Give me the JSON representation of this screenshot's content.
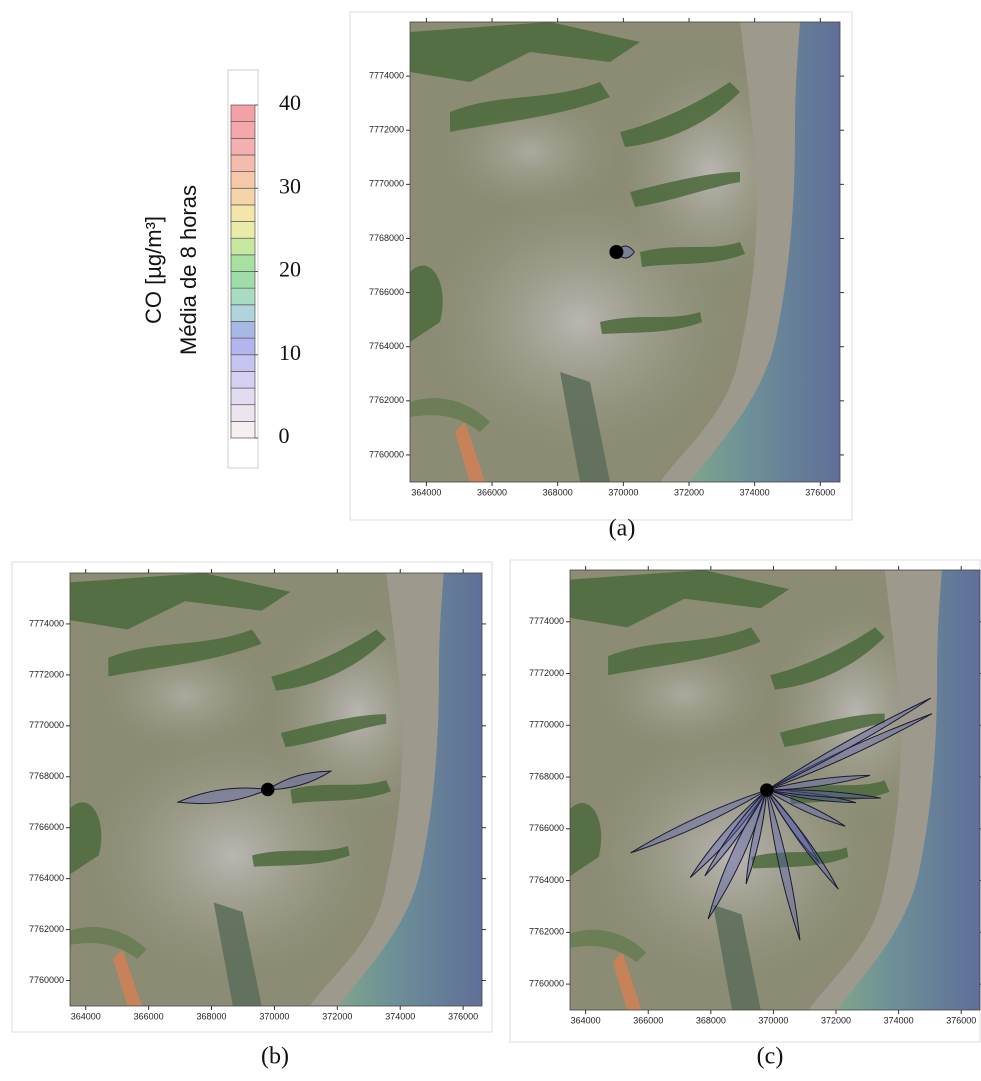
{
  "colorbar": {
    "label": "CO  [µg/m³]",
    "sublabel": "Média de 8 horas",
    "lim": [
      0,
      40
    ],
    "ticks": [
      0,
      10,
      20,
      30,
      40
    ],
    "colors": [
      "#f6eef0",
      "#ece4ee",
      "#e2dcf0",
      "#d6d0f2",
      "#c8c4f2",
      "#b4b4ee",
      "#a8b8e4",
      "#b0d4dc",
      "#a8dcc0",
      "#a0dca8",
      "#a8e0a0",
      "#c8e8a0",
      "#e8eca8",
      "#f4e6a8",
      "#f4d4a8",
      "#f4c8a8",
      "#f4bcac",
      "#f4b0b0",
      "#f4a8ac",
      "#f4a0a8"
    ]
  },
  "map_axes": {
    "xlim": [
      363500,
      376600
    ],
    "ylim": [
      7759000,
      7776000
    ],
    "xticks": [
      364000,
      366000,
      368000,
      370000,
      372000,
      374000,
      376000
    ],
    "yticks": [
      7760000,
      7762000,
      7764000,
      7766000,
      7768000,
      7770000,
      7772000,
      7774000
    ]
  },
  "panels": [
    {
      "label": "(a)"
    },
    {
      "label": "(b)"
    },
    {
      "label": "(c)"
    }
  ]
}
